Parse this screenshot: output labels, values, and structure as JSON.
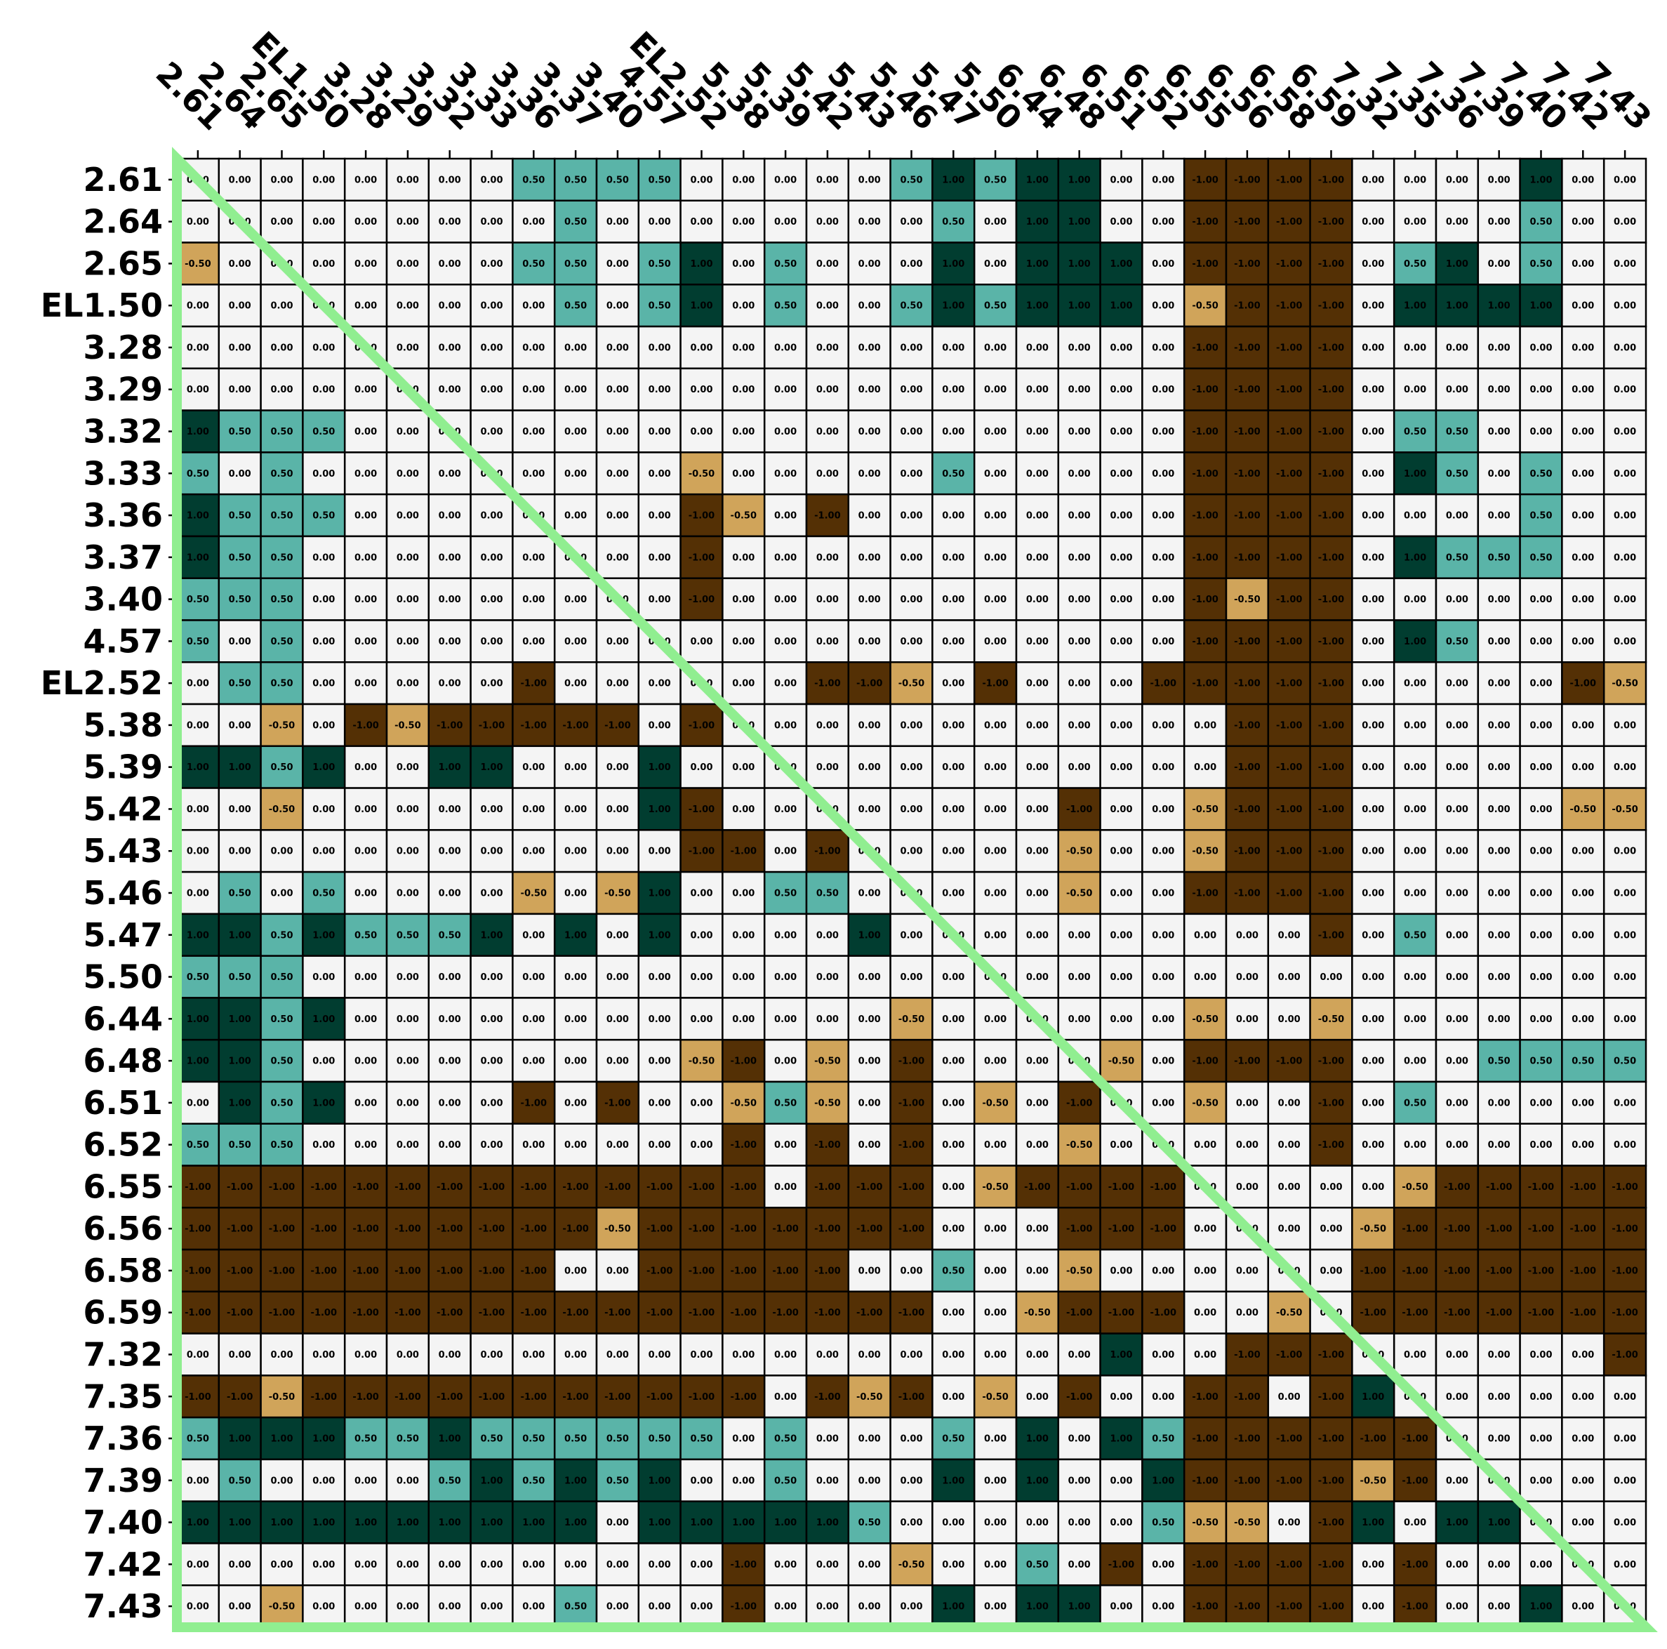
{
  "chart_data": {
    "type": "heatmap",
    "title": "",
    "xlabel": "",
    "ylabel": "",
    "value_range": [
      -1,
      1
    ],
    "grid": true,
    "colors": {
      "-1": "#543005",
      "-0.5": "#d0a45a",
      "0": "#f4f4f4",
      "0.5": "#5ab4a8",
      "1": "#013d30",
      "cell_border": "#000000",
      "diagonal": "#90ee90",
      "text_dark": "#000000",
      "text_light": "#ffffff"
    },
    "row_labels": [
      "2.61",
      "2.64",
      "2.65",
      "EL1.50",
      "3.28",
      "3.29",
      "3.32",
      "3.33",
      "3.36",
      "3.37",
      "3.40",
      "4.57",
      "EL2.52",
      "5.38",
      "5.39",
      "5.42",
      "5.43",
      "5.46",
      "5.47",
      "5.50",
      "6.44",
      "6.48",
      "6.51",
      "6.52",
      "6.55",
      "6.56",
      "6.58",
      "6.59",
      "7.32",
      "7.35",
      "7.36",
      "7.39",
      "7.40",
      "7.42",
      "7.43"
    ],
    "col_labels": [
      "2.61",
      "2.64",
      "2.65",
      "EL1.50",
      "3.28",
      "3.29",
      "3.32",
      "3.33",
      "3.36",
      "3.37",
      "3.40",
      "4.57",
      "EL2.52",
      "5.38",
      "5.39",
      "5.42",
      "5.43",
      "5.46",
      "5.47",
      "5.50",
      "6.44",
      "6.48",
      "6.51",
      "6.52",
      "6.55",
      "6.56",
      "6.58",
      "6.59",
      "7.32",
      "7.35",
      "7.36",
      "7.39",
      "7.40",
      "7.42",
      "7.43"
    ],
    "values": [
      [
        0,
        0,
        0,
        0,
        0,
        0,
        0,
        0,
        0.5,
        0.5,
        0.5,
        0.5,
        0,
        0,
        0,
        0,
        0,
        0.5,
        1,
        0.5,
        1,
        1,
        0,
        0,
        -1,
        -1,
        -1,
        -1,
        0,
        0,
        0,
        0,
        1,
        0,
        0
      ],
      [
        0,
        0,
        0,
        0,
        0,
        0,
        0,
        0,
        0,
        0.5,
        0,
        0,
        0,
        0,
        0,
        0,
        0,
        0,
        0.5,
        0,
        1,
        1,
        0,
        0,
        -1,
        -1,
        -1,
        -1,
        0,
        0,
        0,
        0,
        0.5,
        0,
        0
      ],
      [
        -0.5,
        0,
        0,
        0,
        0,
        0,
        0,
        0,
        0.5,
        0.5,
        0,
        0.5,
        1,
        0,
        0.5,
        0,
        0,
        0,
        1,
        0,
        1,
        1,
        1,
        0,
        -1,
        -1,
        -1,
        -1,
        0,
        0.5,
        1,
        0,
        0.5,
        0,
        0
      ],
      [
        0,
        0,
        0,
        0,
        0,
        0,
        0,
        0,
        0,
        0.5,
        0,
        0.5,
        1,
        0,
        0.5,
        0,
        0,
        0.5,
        1,
        0.5,
        1,
        1,
        1,
        0,
        -0.5,
        -1,
        -1,
        -1,
        0,
        1,
        1,
        1,
        1,
        0,
        0
      ],
      [
        0,
        0,
        0,
        0,
        0,
        0,
        0,
        0,
        0,
        0,
        0,
        0,
        0,
        0,
        0,
        0,
        0,
        0,
        0,
        0,
        0,
        0,
        0,
        0,
        -1,
        -1,
        -1,
        -1,
        0,
        0,
        0,
        0,
        0,
        0,
        0
      ],
      [
        0,
        0,
        0,
        0,
        0,
        0,
        0,
        0,
        0,
        0,
        0,
        0,
        0,
        0,
        0,
        0,
        0,
        0,
        0,
        0,
        0,
        0,
        0,
        0,
        -1,
        -1,
        -1,
        -1,
        0,
        0,
        0,
        0,
        0,
        0,
        0
      ],
      [
        1,
        0.5,
        0.5,
        0.5,
        0,
        0,
        0,
        0,
        0,
        0,
        0,
        0,
        0,
        0,
        0,
        0,
        0,
        0,
        0,
        0,
        0,
        0,
        0,
        0,
        -1,
        -1,
        -1,
        -1,
        0,
        0.5,
        0.5,
        0,
        0,
        0,
        0
      ],
      [
        0.5,
        0,
        0.5,
        0,
        0,
        0,
        0,
        0,
        0,
        0,
        0,
        0,
        -0.5,
        0,
        0,
        0,
        0,
        0,
        0.5,
        0,
        0,
        0,
        0,
        0,
        -1,
        -1,
        -1,
        -1,
        0,
        1,
        0.5,
        0,
        0.5,
        0,
        0
      ],
      [
        1,
        0.5,
        0.5,
        0.5,
        0,
        0,
        0,
        0,
        0,
        0,
        0,
        0,
        -1,
        -0.5,
        0,
        -1,
        0,
        0,
        0,
        0,
        0,
        0,
        0,
        0,
        -1,
        -1,
        -1,
        -1,
        0,
        0,
        0,
        0,
        0.5,
        0,
        0
      ],
      [
        1,
        0.5,
        0.5,
        0,
        0,
        0,
        0,
        0,
        0,
        0,
        0,
        0,
        -1,
        0,
        0,
        0,
        0,
        0,
        0,
        0,
        0,
        0,
        0,
        0,
        -1,
        -1,
        -1,
        -1,
        0,
        1,
        0.5,
        0.5,
        0.5,
        0,
        0
      ],
      [
        0.5,
        0.5,
        0.5,
        0,
        0,
        0,
        0,
        0,
        0,
        0,
        0,
        0,
        -1,
        0,
        0,
        0,
        0,
        0,
        0,
        0,
        0,
        0,
        0,
        0,
        -1,
        -0.5,
        -1,
        -1,
        0,
        0,
        0,
        0,
        0,
        0,
        0
      ],
      [
        0.5,
        0,
        0.5,
        0,
        0,
        0,
        0,
        0,
        0,
        0,
        0,
        0,
        0,
        0,
        0,
        0,
        0,
        0,
        0,
        0,
        0,
        0,
        0,
        0,
        -1,
        -1,
        -1,
        -1,
        0,
        1,
        0.5,
        0,
        0,
        0,
        0
      ],
      [
        0,
        0.5,
        0.5,
        0,
        0,
        0,
        0,
        0,
        -1,
        0,
        0,
        0,
        0,
        0,
        0,
        -1,
        -1,
        -0.5,
        0,
        -1,
        0,
        0,
        0,
        -1,
        -1,
        -1,
        -1,
        -1,
        0,
        0,
        0,
        0,
        0,
        -1,
        -0.5
      ],
      [
        0,
        0,
        -0.5,
        0,
        -1,
        -0.5,
        -1,
        -1,
        -1,
        -1,
        -1,
        0,
        -1,
        0,
        0,
        0,
        0,
        0,
        0,
        0,
        0,
        0,
        0,
        0,
        0,
        -1,
        -1,
        -1,
        0,
        0,
        0,
        0,
        0,
        0,
        0
      ],
      [
        1,
        1,
        0.5,
        1,
        0,
        0,
        1,
        1,
        0,
        0,
        0,
        1,
        0,
        0,
        0,
        0,
        0,
        0,
        0,
        0,
        0,
        0,
        0,
        0,
        0,
        -1,
        -1,
        -1,
        0,
        0,
        0,
        0,
        0,
        0,
        0
      ],
      [
        0,
        0,
        -0.5,
        0,
        0,
        0,
        0,
        0,
        0,
        0,
        0,
        1,
        -1,
        0,
        0,
        0,
        0,
        0,
        0,
        0,
        0,
        -1,
        0,
        0,
        -0.5,
        -1,
        -1,
        -1,
        0,
        0,
        0,
        0,
        0,
        -0.5,
        -0.5
      ],
      [
        0,
        0,
        0,
        0,
        0,
        0,
        0,
        0,
        0,
        0,
        0,
        0,
        -1,
        -1,
        0,
        -1,
        0,
        0,
        0,
        0,
        0,
        -0.5,
        0,
        0,
        -0.5,
        -1,
        -1,
        -1,
        0,
        0,
        0,
        0,
        0,
        0,
        0
      ],
      [
        0,
        0.5,
        0,
        0.5,
        0,
        0,
        0,
        0,
        -0.5,
        0,
        -0.5,
        1,
        0,
        0,
        0.5,
        0.5,
        0,
        0,
        0,
        0,
        0,
        -0.5,
        0,
        0,
        -1,
        -1,
        -1,
        -1,
        0,
        0,
        0,
        0,
        0,
        0,
        0
      ],
      [
        1,
        1,
        0.5,
        1,
        0.5,
        0.5,
        0.5,
        1,
        0,
        1,
        0,
        1,
        0,
        0,
        0,
        0,
        1,
        0,
        0,
        0,
        0,
        0,
        0,
        0,
        0,
        0,
        0,
        -1,
        0,
        0.5,
        0,
        0,
        0,
        0,
        0
      ],
      [
        0.5,
        0.5,
        0.5,
        0,
        0,
        0,
        0,
        0,
        0,
        0,
        0,
        0,
        0,
        0,
        0,
        0,
        0,
        0,
        0,
        0,
        0,
        0,
        0,
        0,
        0,
        0,
        0,
        0,
        0,
        0,
        0,
        0,
        0,
        0,
        0
      ],
      [
        1,
        1,
        0.5,
        1,
        0,
        0,
        0,
        0,
        0,
        0,
        0,
        0,
        0,
        0,
        0,
        0,
        0,
        -0.5,
        0,
        0,
        0,
        0,
        0,
        0,
        -0.5,
        0,
        0,
        -0.5,
        0,
        0,
        0,
        0,
        0,
        0,
        0
      ],
      [
        1,
        1,
        0.5,
        0,
        0,
        0,
        0,
        0,
        0,
        0,
        0,
        0,
        -0.5,
        -1,
        0,
        -0.5,
        0,
        -1,
        0,
        0,
        0,
        0,
        -0.5,
        0,
        -1,
        -1,
        -1,
        -1,
        0,
        0,
        0,
        0.5,
        0.5,
        0.5,
        0.5
      ],
      [
        0,
        1,
        0.5,
        1,
        0,
        0,
        0,
        0,
        -1,
        0,
        -1,
        0,
        0,
        -0.5,
        0.5,
        -0.5,
        0,
        -1,
        0,
        -0.5,
        0,
        -1,
        0,
        0,
        -0.5,
        0,
        0,
        -1,
        0,
        0.5,
        0,
        0,
        0,
        0,
        0
      ],
      [
        0.5,
        0.5,
        0.5,
        0,
        0,
        0,
        0,
        0,
        0,
        0,
        0,
        0,
        0,
        -1,
        0,
        -1,
        0,
        -1,
        0,
        0,
        0,
        -0.5,
        0,
        0,
        0,
        0,
        0,
        -1,
        0,
        0,
        0,
        0,
        0,
        0,
        0
      ],
      [
        -1,
        -1,
        -1,
        -1,
        -1,
        -1,
        -1,
        -1,
        -1,
        -1,
        -1,
        -1,
        -1,
        -1,
        0,
        -1,
        -1,
        -1,
        0,
        -0.5,
        -1,
        -1,
        -1,
        -1,
        0,
        0,
        0,
        0,
        0,
        -0.5,
        -1,
        -1,
        -1,
        -1,
        -1
      ],
      [
        -1,
        -1,
        -1,
        -1,
        -1,
        -1,
        -1,
        -1,
        -1,
        -1,
        -0.5,
        -1,
        -1,
        -1,
        -1,
        -1,
        -1,
        -1,
        0,
        0,
        0,
        -1,
        -1,
        -1,
        0,
        0,
        0,
        0,
        -0.5,
        -1,
        -1,
        -1,
        -1,
        -1,
        -1
      ],
      [
        -1,
        -1,
        -1,
        -1,
        -1,
        -1,
        -1,
        -1,
        -1,
        0,
        0,
        -1,
        -1,
        -1,
        -1,
        -1,
        0,
        0,
        0.5,
        0,
        0,
        -0.5,
        0,
        0,
        0,
        0,
        0,
        0,
        -1,
        -1,
        -1,
        -1,
        -1,
        -1,
        -1
      ],
      [
        -1,
        -1,
        -1,
        -1,
        -1,
        -1,
        -1,
        -1,
        -1,
        -1,
        -1,
        -1,
        -1,
        -1,
        -1,
        -1,
        -1,
        -1,
        0,
        0,
        -0.5,
        -1,
        -1,
        -1,
        0,
        0,
        -0.5,
        0,
        -1,
        -1,
        -1,
        -1,
        -1,
        -1,
        -1
      ],
      [
        0,
        0,
        0,
        0,
        0,
        0,
        0,
        0,
        0,
        0,
        0,
        0,
        0,
        0,
        0,
        0,
        0,
        0,
        0,
        0,
        0,
        0,
        1,
        0,
        0,
        -1,
        -1,
        -1,
        0,
        0,
        0,
        0,
        0,
        0,
        -1
      ],
      [
        -1,
        -1,
        -0.5,
        -1,
        -1,
        -1,
        -1,
        -1,
        -1,
        -1,
        -1,
        -1,
        -1,
        -1,
        0,
        -1,
        -0.5,
        -1,
        0,
        -0.5,
        0,
        -1,
        0,
        0,
        -1,
        -1,
        0,
        -1,
        1,
        0,
        0,
        0,
        0,
        0,
        0
      ],
      [
        0.5,
        1,
        1,
        1,
        0.5,
        0.5,
        1,
        0.5,
        0.5,
        0.5,
        0.5,
        0.5,
        0.5,
        0,
        0.5,
        0,
        0,
        0,
        0.5,
        0,
        1,
        0,
        1,
        0.5,
        -1,
        -1,
        -1,
        -1,
        -1,
        -1,
        0,
        0,
        0,
        0,
        0
      ],
      [
        0,
        0.5,
        0,
        0,
        0,
        0,
        0.5,
        1,
        0.5,
        1,
        0.5,
        1,
        0,
        0,
        0.5,
        0,
        0,
        0,
        1,
        0,
        1,
        0,
        0,
        1,
        -1,
        -1,
        -1,
        -1,
        -0.5,
        -1,
        0,
        0,
        0,
        0,
        0
      ],
      [
        1,
        1,
        1,
        1,
        1,
        1,
        1,
        1,
        1,
        1,
        0,
        1,
        1,
        1,
        1,
        1,
        0.5,
        0,
        0,
        0,
        0,
        0,
        0,
        0.5,
        -0.5,
        -0.5,
        0,
        -1,
        1,
        0,
        1,
        1,
        0,
        0,
        0
      ],
      [
        0,
        0,
        0,
        0,
        0,
        0,
        0,
        0,
        0,
        0,
        0,
        0,
        0,
        -1,
        0,
        0,
        0,
        -0.5,
        0,
        0,
        0.5,
        0,
        -1,
        0,
        -1,
        -1,
        -1,
        -1,
        0,
        -1,
        0,
        0,
        0,
        0,
        0
      ],
      [
        0,
        0,
        -0.5,
        0,
        0,
        0,
        0,
        0,
        0,
        0.5,
        0,
        0,
        0,
        -1,
        0,
        0,
        0,
        0,
        1,
        0,
        1,
        1,
        0,
        0,
        -1,
        -1,
        -1,
        -1,
        0,
        -1,
        0,
        0,
        1,
        0,
        0
      ]
    ]
  }
}
